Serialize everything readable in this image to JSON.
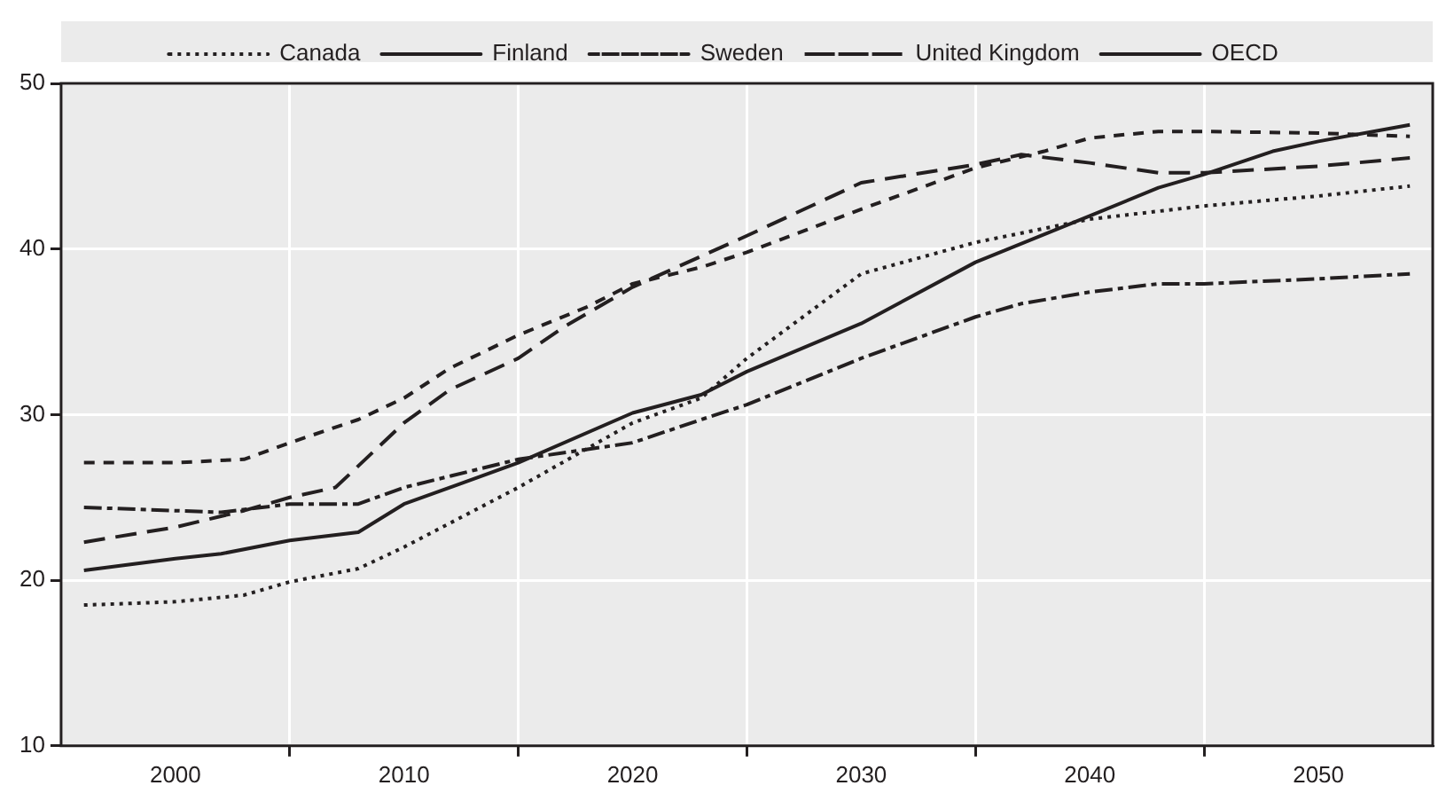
{
  "chart_data": {
    "type": "line",
    "xlim": [
      1995,
      2055
    ],
    "xticks": [
      2000,
      {
        "value": 2005,
        "label": null
      },
      2010,
      {
        "value": 2015,
        "label": null
      },
      2020,
      {
        "value": 2025,
        "label": null
      },
      2030,
      {
        "value": 2035,
        "label": null
      },
      2040,
      {
        "value": 2045,
        "label": null
      },
      2050
    ],
    "ylim": [
      10,
      50
    ],
    "yticks": [
      10,
      20,
      30,
      40,
      50
    ],
    "grid": true,
    "legend": "top",
    "marker": "none",
    "series": [
      {
        "name": "Canada",
        "color": "#231f20",
        "line_style": "dotted",
        "x": [
          1996,
          2000,
          2003,
          2005,
          2008,
          2010,
          2015,
          2020,
          2023,
          2025,
          2030,
          2035,
          2040,
          2045,
          2050,
          2054
        ],
        "values": [
          18.5,
          18.7,
          19.1,
          19.9,
          20.7,
          22.0,
          25.6,
          29.5,
          31.0,
          33.4,
          38.5,
          40.4,
          41.8,
          42.6,
          43.2,
          43.8
        ]
      },
      {
        "name": "Finland",
        "color": "#231f20",
        "line_style": "longdash",
        "x": [
          1996,
          2000,
          2003,
          2005,
          2007,
          2010,
          2012,
          2015,
          2017,
          2020,
          2025,
          2030,
          2035,
          2037,
          2040,
          2043,
          2045,
          2050,
          2054
        ],
        "values": [
          22.3,
          23.2,
          24.2,
          25.0,
          25.6,
          29.5,
          31.5,
          33.4,
          35.3,
          37.7,
          40.8,
          44.0,
          45.1,
          45.7,
          45.2,
          44.6,
          44.6,
          45.0,
          45.5
        ]
      },
      {
        "name": "Sweden",
        "color": "#231f20",
        "line_style": "dashed",
        "x": [
          1996,
          2000,
          2003,
          2005,
          2008,
          2010,
          2012,
          2015,
          2018,
          2020,
          2023,
          2025,
          2030,
          2035,
          2038,
          2040,
          2043,
          2045,
          2050,
          2054
        ],
        "values": [
          27.1,
          27.1,
          27.3,
          28.3,
          29.7,
          31.0,
          32.8,
          34.8,
          36.5,
          37.9,
          38.9,
          39.8,
          42.4,
          44.9,
          45.9,
          46.7,
          47.1,
          47.1,
          47.0,
          46.8
        ]
      },
      {
        "name": "United Kingdom",
        "color": "#231f20",
        "line_style": "dashdot",
        "x": [
          1996,
          2000,
          2002,
          2005,
          2008,
          2010,
          2015,
          2020,
          2023,
          2025,
          2030,
          2035,
          2037,
          2040,
          2043,
          2045,
          2050,
          2054
        ],
        "values": [
          24.4,
          24.2,
          24.1,
          24.6,
          24.6,
          25.6,
          27.3,
          28.3,
          29.7,
          30.6,
          33.4,
          35.9,
          36.7,
          37.4,
          37.9,
          37.9,
          38.2,
          38.5
        ]
      },
      {
        "name": "OECD",
        "color": "#231f20",
        "line_style": "solid",
        "x": [
          1996,
          2000,
          2002,
          2005,
          2008,
          2010,
          2015,
          2020,
          2023,
          2025,
          2030,
          2035,
          2040,
          2043,
          2045,
          2048,
          2050,
          2054
        ],
        "values": [
          20.6,
          21.3,
          21.6,
          22.4,
          22.9,
          24.6,
          27.1,
          30.1,
          31.2,
          32.6,
          35.5,
          39.2,
          42.0,
          43.7,
          44.5,
          45.9,
          46.5,
          47.5
        ]
      }
    ]
  }
}
